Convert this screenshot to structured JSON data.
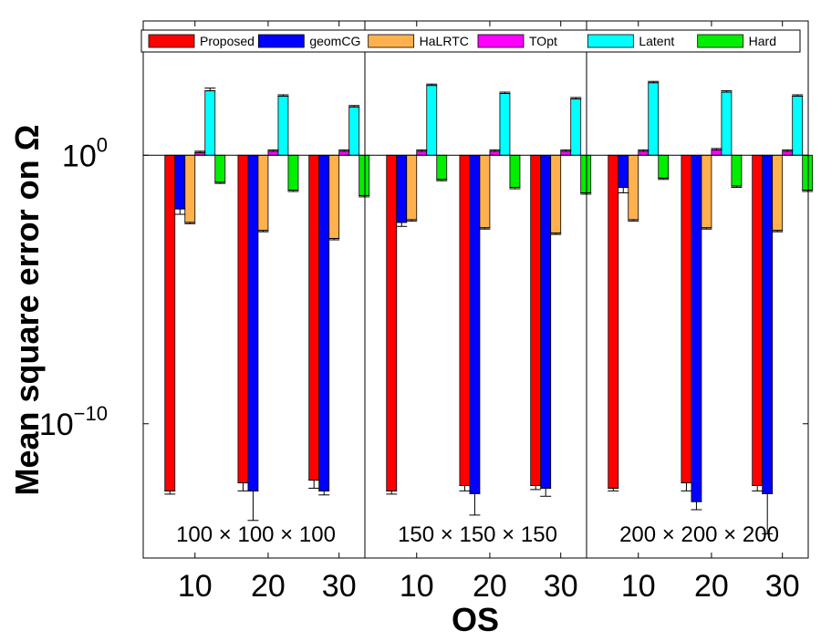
{
  "chart_data": {
    "type": "bar",
    "title": "",
    "xlabel": "OS",
    "ylabel": "Mean square error on Ω",
    "yscale": "log",
    "ylim_exponent": [
      -15,
      5
    ],
    "yticks": [
      {
        "exp": 0,
        "base": "10",
        "sup": "0"
      },
      {
        "exp": -10,
        "base": "10",
        "sup": "−10"
      }
    ],
    "legend_position": "top",
    "categories": [
      "10",
      "20",
      "30",
      "10",
      "20",
      "30",
      "10",
      "20",
      "30"
    ],
    "panels": [
      {
        "label": "100 × 100 × 100",
        "os": [
          "10",
          "20",
          "30"
        ]
      },
      {
        "label": "150 × 150 × 150",
        "os": [
          "10",
          "20",
          "30"
        ]
      },
      {
        "label": "200 × 200 × 200",
        "os": [
          "10",
          "20",
          "30"
        ]
      }
    ],
    "series": [
      {
        "name": "Proposed",
        "color": "#ff0000",
        "log10_values": [
          -12.5,
          -12.2,
          -12.1,
          -12.5,
          -12.3,
          -12.3,
          -12.4,
          -12.2,
          -12.3
        ],
        "log10_err": [
          0.12,
          0.3,
          0.3,
          0.12,
          0.2,
          0.15,
          0.1,
          0.3,
          0.2
        ]
      },
      {
        "name": "geomCG",
        "color": "#0000ff",
        "log10_values": [
          -2.0,
          -12.5,
          -12.5,
          -2.5,
          -12.6,
          -12.4,
          -1.2,
          -12.9,
          -12.6
        ],
        "log10_err": [
          0.2,
          1.1,
          0.15,
          0.15,
          0.8,
          0.3,
          0.2,
          0.3,
          1.5
        ]
      },
      {
        "name": "HaLRTC",
        "color": "#ffb14e",
        "log10_values": [
          -2.5,
          -2.8,
          -3.1,
          -2.4,
          -2.7,
          -2.9,
          -2.4,
          -2.7,
          -2.8
        ],
        "log10_err": [
          0.05,
          0.05,
          0.05,
          0.05,
          0.05,
          0.05,
          0.05,
          0.05,
          0.05
        ]
      },
      {
        "name": "TOpt",
        "color": "#ff00ff",
        "log10_values": [
          0.1,
          0.15,
          0.15,
          0.15,
          0.15,
          0.15,
          0.15,
          0.2,
          0.15
        ],
        "log10_err": [
          0.05,
          0.05,
          0.05,
          0.05,
          0.05,
          0.05,
          0.05,
          0.05,
          0.05
        ]
      },
      {
        "name": "Latent",
        "color": "#00ffff",
        "log10_values": [
          2.4,
          2.2,
          1.8,
          2.6,
          2.3,
          2.1,
          2.7,
          2.35,
          2.2
        ],
        "log10_err": [
          0.1,
          0.05,
          0.05,
          0.05,
          0.05,
          0.05,
          0.05,
          0.05,
          0.05
        ]
      },
      {
        "name": "Hard",
        "color": "#00ee00",
        "log10_values": [
          -1.0,
          -1.3,
          -1.5,
          -0.9,
          -1.2,
          -1.4,
          -0.85,
          -1.15,
          -1.3
        ],
        "log10_err": [
          0.05,
          0.05,
          0.05,
          0.05,
          0.05,
          0.05,
          0.05,
          0.05,
          0.05
        ]
      }
    ]
  }
}
